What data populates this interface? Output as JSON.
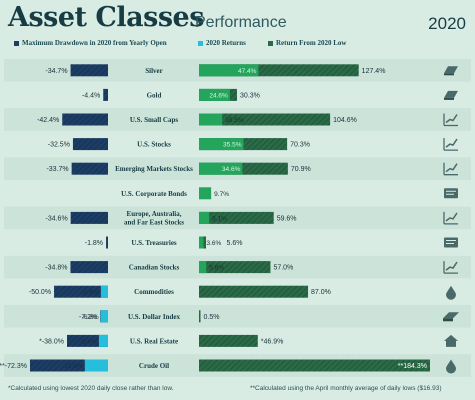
{
  "header": {
    "title": "Asset Classes",
    "subtitle": "Performance",
    "year": "2020"
  },
  "colors": {
    "background": "#d9ece4",
    "row_band": "#cbe3d9",
    "drawdown": "#1c3e66",
    "returns_2020": "#25bedb",
    "from_low": "#23a55b",
    "from_low_dark": "#2a6b47",
    "text_dark": "#173c44"
  },
  "legend": [
    {
      "label": "Maximum Drawdown in 2020 from Yearly Open",
      "color": "#1c3e66"
    },
    {
      "label": "2020 Returns",
      "color": "#25bedb"
    },
    {
      "label": "Return From 2020 Low",
      "color": "#2a6b47"
    }
  ],
  "chart_data": {
    "type": "bar",
    "series": [
      {
        "name": "Maximum Drawdown in 2020 from Yearly Open"
      },
      {
        "name": "2020 Returns"
      },
      {
        "name": "Return From 2020 Low"
      }
    ],
    "rows": [
      {
        "category": "Silver",
        "drawdown": -34.7,
        "drawdown_label": "-34.7%",
        "ret2020": 47.4,
        "ret2020_label": "47.4%",
        "fromLow": 127.4,
        "fromLow_label": "127.4%",
        "icon": "silver-bar-icon"
      },
      {
        "category": "Gold",
        "drawdown": -4.4,
        "drawdown_label": "-4.4%",
        "ret2020": 24.6,
        "ret2020_label": "24.6%",
        "fromLow": 30.3,
        "fromLow_label": "30.3%",
        "icon": "gold-bar-icon"
      },
      {
        "category": "U.S. Small Caps",
        "drawdown": -42.4,
        "drawdown_label": "-42.4%",
        "ret2020": 18.5,
        "ret2020_label": "18.5%",
        "fromLow": 104.6,
        "fromLow_label": "104.6%",
        "icon": "line-chart-icon"
      },
      {
        "category": "U.S. Stocks",
        "drawdown": -32.5,
        "drawdown_label": "-32.5%",
        "ret2020": 35.5,
        "ret2020_label": "35.5%",
        "fromLow": 70.3,
        "fromLow_label": "70.3%",
        "icon": "line-chart-icon"
      },
      {
        "category": "Emerging Markets Stocks",
        "drawdown": -33.7,
        "drawdown_label": "-33.7%",
        "ret2020": 34.6,
        "ret2020_label": "34.6%",
        "fromLow": 70.9,
        "fromLow_label": "70.9%",
        "icon": "line-chart-icon"
      },
      {
        "category": "U.S. Corporate Bonds",
        "drawdown": null,
        "drawdown_label": "",
        "ret2020": 9.7,
        "ret2020_label": "9.7%",
        "fromLow": null,
        "fromLow_label": "",
        "icon": "bond-certificate-icon"
      },
      {
        "category": "Europe, Australia, and Far East Stocks",
        "lines": [
          "Europe, Australia,",
          "and Far East Stocks"
        ],
        "drawdown": -34.6,
        "drawdown_label": "-34.6%",
        "ret2020": 8.1,
        "ret2020_label": "8.1%",
        "fromLow": 59.6,
        "fromLow_label": "59.6%",
        "icon": "line-chart-icon"
      },
      {
        "category": "U.S. Treasuries",
        "drawdown": -1.8,
        "drawdown_label": "-1.8%",
        "ret2020": 3.6,
        "ret2020_label": "3.6%",
        "fromLow": 5.6,
        "fromLow_label": "5.6%",
        "icon": "bond-certificate-icon"
      },
      {
        "category": "Canadian Stocks",
        "drawdown": -34.8,
        "drawdown_label": "-34.8%",
        "ret2020": 5.8,
        "ret2020_label": "5.8%",
        "fromLow": 57.0,
        "fromLow_label": "57.0%",
        "icon": "line-chart-icon"
      },
      {
        "category": "Commodities",
        "drawdown": -50.0,
        "drawdown_label": "-50.0%",
        "ret2020": -6.6,
        "ret2020_label": "-6.6%",
        "fromLow": 87.0,
        "fromLow_label": "87.0%",
        "icon": "oil-drop-icon"
      },
      {
        "category": "U.S. Dollar Index",
        "drawdown": -7.2,
        "drawdown_label": "-7.2%",
        "ret2020": -6.8,
        "ret2020_label": "-6.8%",
        "fromLow": 0.5,
        "fromLow_label": "0.5%",
        "icon": "cash-stack-icon"
      },
      {
        "category": "U.S. Real Estate",
        "drawdown": -38.0,
        "drawdown_label": "*-38.0%",
        "ret2020": -8.4,
        "ret2020_label": "-8.4%",
        "fromLow": 46.9,
        "fromLow_label": "*46.9%",
        "icon": "house-icon"
      },
      {
        "category": "Crude Oil",
        "drawdown": -72.3,
        "drawdown_label": "**-72.3%",
        "ret2020": -21.5,
        "ret2020_label": "-21.5%",
        "fromLow": 184.3,
        "fromLow_label": "**184.3%",
        "icon": "oil-drop-icon"
      }
    ]
  },
  "footnotes": {
    "left": "*Calculated using lowest 2020 daily close rather than low.",
    "right": "**Calculated using the April monthly average of daily lows ($16.93)"
  }
}
